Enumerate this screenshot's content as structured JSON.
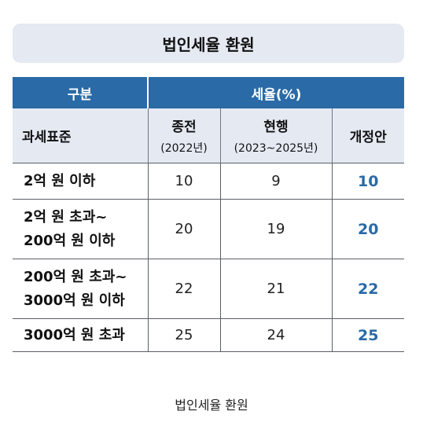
{
  "title": "법인세율 환원",
  "header": {
    "group_label": "구분",
    "rate_label": "세율(%)",
    "base_label": "과세표준",
    "prev_label": "종전",
    "prev_period": "(2022년)",
    "current_label": "현행",
    "current_period": "(2023~2025년)",
    "proposal_label": "개정안"
  },
  "rows": [
    {
      "bracket_line1": "2억 원 이하",
      "bracket_line2": "",
      "prev": "10",
      "current": "9",
      "proposal": "10"
    },
    {
      "bracket_line1": "2억 원 초과~",
      "bracket_line2": "200억 원 이하",
      "prev": "20",
      "current": "19",
      "proposal": "20"
    },
    {
      "bracket_line1": "200억 원 초과~",
      "bracket_line2": "3000억 원 이하",
      "prev": "22",
      "current": "21",
      "proposal": "22"
    },
    {
      "bracket_line1": "3000억 원 초과",
      "bracket_line2": "",
      "prev": "25",
      "current": "24",
      "proposal": "25"
    }
  ],
  "caption": "법인세율 환원",
  "colors": {
    "header_blue": "#2a6aa6",
    "subheader_bg": "#e4e9f2",
    "proposal_text": "#2a6aa6"
  }
}
